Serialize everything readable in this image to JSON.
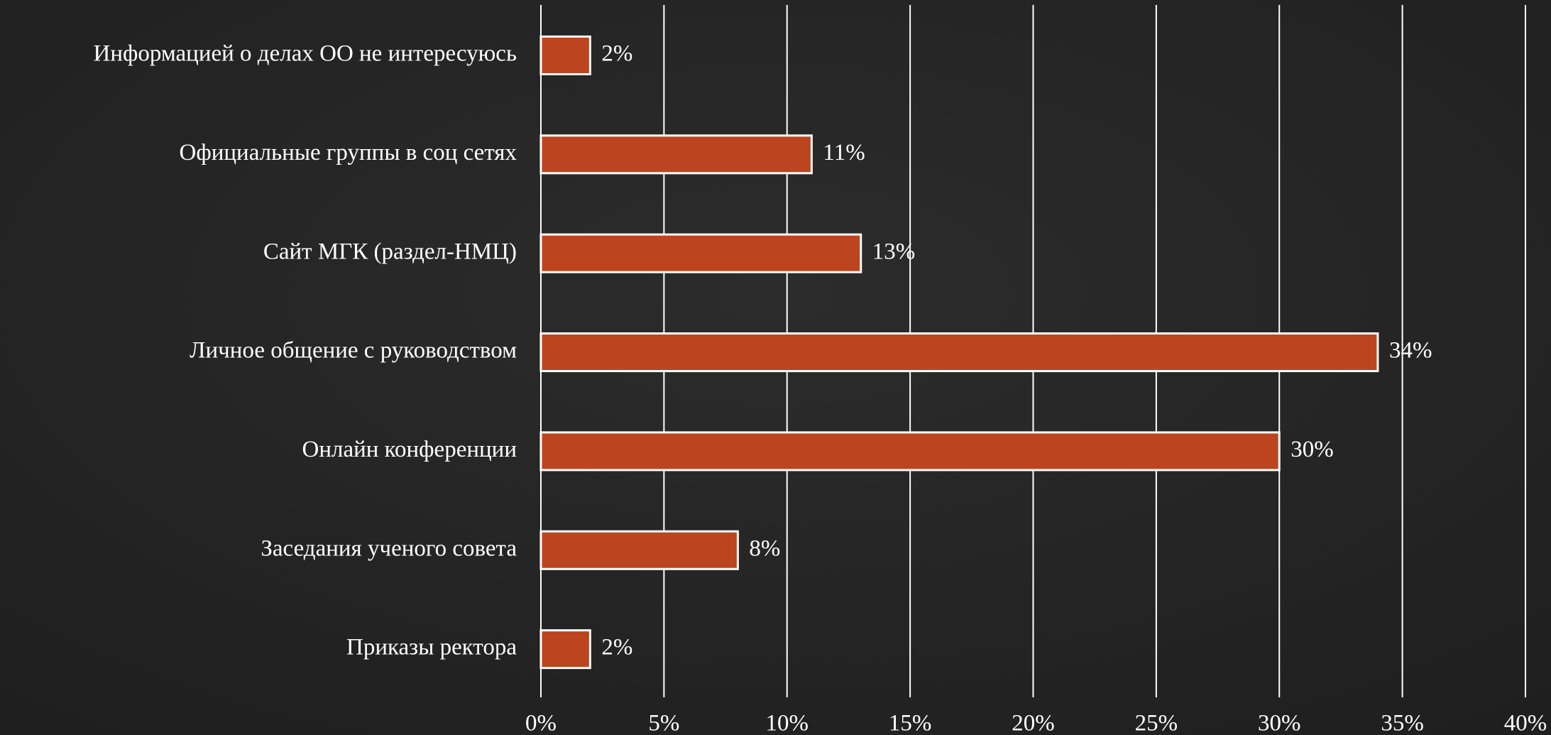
{
  "chart_data": {
    "type": "bar",
    "orientation": "horizontal",
    "categories": [
      "Информацией о делах ОО не интересуюсь",
      "Официальные группы в соц сетях",
      "Сайт МГК (раздел-НМЦ)",
      "Личное общение с руководством",
      "Онлайн конференции",
      "Заседания ученого совета",
      "Приказы ректора"
    ],
    "values": [
      2,
      11,
      13,
      34,
      30,
      8,
      2
    ],
    "value_labels": [
      "2%",
      "11%",
      "13%",
      "34%",
      "30%",
      "8%",
      "2%"
    ],
    "color": "#bc4520",
    "xlim": [
      0,
      40
    ],
    "xticks": [
      {
        "value": 0,
        "label": "0%"
      },
      {
        "value": 5,
        "label": "5%"
      },
      {
        "value": 10,
        "label": "10%"
      },
      {
        "value": 15,
        "label": "15%"
      },
      {
        "value": 20,
        "label": "20%"
      },
      {
        "value": 25,
        "label": "25%"
      },
      {
        "value": 30,
        "label": "30%"
      },
      {
        "value": 35,
        "label": "35%"
      },
      {
        "value": 40,
        "label": "40%"
      }
    ],
    "grid": true
  }
}
